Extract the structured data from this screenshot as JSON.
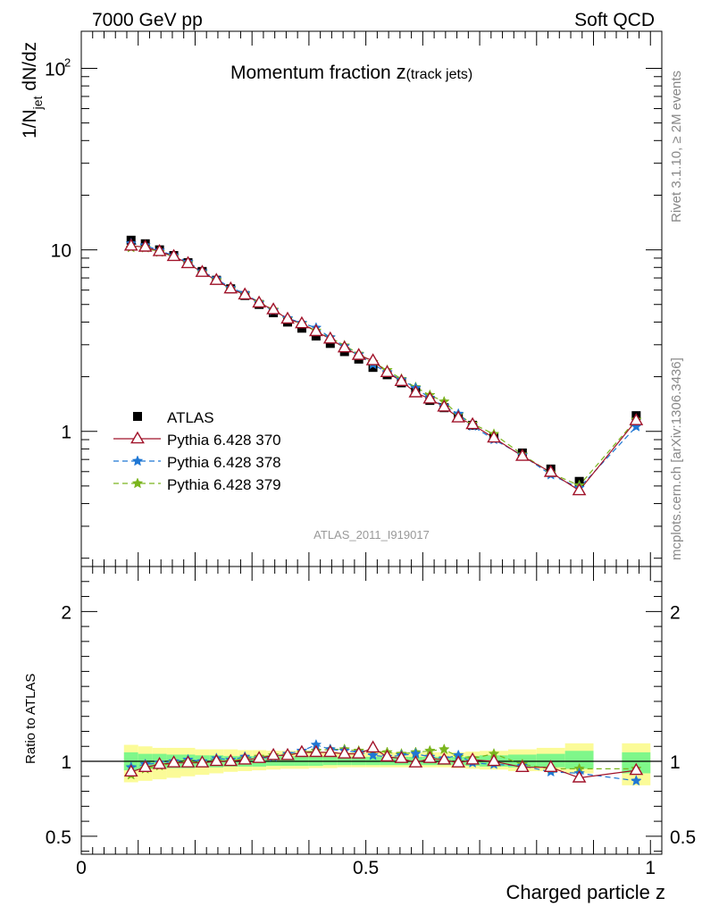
{
  "header": {
    "left": "7000 GeV pp",
    "right": "Soft QCD"
  },
  "side_labels": {
    "top": "Rivet 3.1.10, ≥ 2M events",
    "bottom": "mcplots.cern.ch [arXiv:1306.3436]"
  },
  "watermark": "ATLAS_2011_I919017",
  "chart_data": {
    "type": "line",
    "title_main": "Momentum fraction ",
    "title_z": "z",
    "title_sub": "(track jets)",
    "xlabel": "Charged particle z",
    "ylabel_main": "1/N",
    "ylabel_sub": "jet",
    "ylabel_rest": " dN/dz",
    "ratio_ylabel": "Ratio to ATLAS",
    "y_scale": "log",
    "xlim": [
      0,
      1.02
    ],
    "ylim": [
      0.18,
      160
    ],
    "ratio_ylim": [
      0.38,
      2.3
    ],
    "x_ticks": [
      {
        "v": 0,
        "label": "0"
      },
      {
        "v": 0.5,
        "label": "0.5"
      },
      {
        "v": 1,
        "label": "1"
      }
    ],
    "y_ticks": [
      {
        "v": 1,
        "label": "1"
      },
      {
        "v": 10,
        "label": "10"
      }
    ],
    "y_tick_top": {
      "v": 100,
      "base": "10",
      "exp": "2"
    },
    "ratio_ticks": [
      {
        "v": 0.5,
        "label": "0.5"
      },
      {
        "v": 1,
        "label": "1"
      },
      {
        "v": 2,
        "label": "2"
      }
    ],
    "x": [
      0.0875,
      0.1125,
      0.1375,
      0.1625,
      0.1875,
      0.2125,
      0.2375,
      0.2625,
      0.2875,
      0.3125,
      0.3375,
      0.3625,
      0.3875,
      0.4125,
      0.4375,
      0.4625,
      0.4875,
      0.5125,
      0.5375,
      0.5625,
      0.5875,
      0.6125,
      0.6375,
      0.6625,
      0.6875,
      0.725,
      0.775,
      0.825,
      0.875,
      0.975
    ],
    "bin_edges": [
      0.075,
      0.1,
      0.125,
      0.15,
      0.175,
      0.2,
      0.225,
      0.25,
      0.275,
      0.3,
      0.325,
      0.35,
      0.375,
      0.4,
      0.425,
      0.45,
      0.475,
      0.5,
      0.525,
      0.55,
      0.575,
      0.6,
      0.625,
      0.65,
      0.675,
      0.7,
      0.75,
      0.8,
      0.85,
      0.9,
      0.95,
      1.0
    ],
    "band_bins": [
      {
        "x0": 0.075,
        "x1": 0.1,
        "g": [
          0.94,
          1.06
        ],
        "y": [
          0.86,
          1.11
        ]
      },
      {
        "x0": 0.1,
        "x1": 0.125,
        "g": [
          0.95,
          1.05
        ],
        "y": [
          0.87,
          1.1
        ]
      },
      {
        "x0": 0.125,
        "x1": 0.15,
        "g": [
          0.95,
          1.05
        ],
        "y": [
          0.88,
          1.09
        ]
      },
      {
        "x0": 0.15,
        "x1": 0.175,
        "g": [
          0.955,
          1.045
        ],
        "y": [
          0.89,
          1.09
        ]
      },
      {
        "x0": 0.175,
        "x1": 0.2,
        "g": [
          0.955,
          1.045
        ],
        "y": [
          0.9,
          1.09
        ]
      },
      {
        "x0": 0.2,
        "x1": 0.225,
        "g": [
          0.96,
          1.04
        ],
        "y": [
          0.91,
          1.08
        ]
      },
      {
        "x0": 0.225,
        "x1": 0.25,
        "g": [
          0.96,
          1.04
        ],
        "y": [
          0.92,
          1.08
        ]
      },
      {
        "x0": 0.25,
        "x1": 0.275,
        "g": [
          0.965,
          1.035
        ],
        "y": [
          0.93,
          1.08
        ]
      },
      {
        "x0": 0.275,
        "x1": 0.3,
        "g": [
          0.965,
          1.035
        ],
        "y": [
          0.935,
          1.075
        ]
      },
      {
        "x0": 0.3,
        "x1": 0.325,
        "g": [
          0.965,
          1.035
        ],
        "y": [
          0.94,
          1.075
        ]
      },
      {
        "x0": 0.325,
        "x1": 0.35,
        "g": [
          0.97,
          1.035
        ],
        "y": [
          0.945,
          1.07
        ]
      },
      {
        "x0": 0.35,
        "x1": 0.375,
        "g": [
          0.97,
          1.035
        ],
        "y": [
          0.95,
          1.07
        ]
      },
      {
        "x0": 0.375,
        "x1": 0.4,
        "g": [
          0.97,
          1.035
        ],
        "y": [
          0.95,
          1.07
        ]
      },
      {
        "x0": 0.4,
        "x1": 0.425,
        "g": [
          0.97,
          1.035
        ],
        "y": [
          0.955,
          1.065
        ]
      },
      {
        "x0": 0.425,
        "x1": 0.45,
        "g": [
          0.975,
          1.035
        ],
        "y": [
          0.955,
          1.065
        ]
      },
      {
        "x0": 0.45,
        "x1": 0.475,
        "g": [
          0.975,
          1.03
        ],
        "y": [
          0.96,
          1.06
        ]
      },
      {
        "x0": 0.475,
        "x1": 0.5,
        "g": [
          0.975,
          1.03
        ],
        "y": [
          0.96,
          1.06
        ]
      },
      {
        "x0": 0.5,
        "x1": 0.525,
        "g": [
          0.975,
          1.03
        ],
        "y": [
          0.96,
          1.06
        ]
      },
      {
        "x0": 0.525,
        "x1": 0.55,
        "g": [
          0.975,
          1.03
        ],
        "y": [
          0.96,
          1.06
        ]
      },
      {
        "x0": 0.55,
        "x1": 0.575,
        "g": [
          0.975,
          1.03
        ],
        "y": [
          0.96,
          1.06
        ]
      },
      {
        "x0": 0.575,
        "x1": 0.6,
        "g": [
          0.975,
          1.03
        ],
        "y": [
          0.96,
          1.06
        ]
      },
      {
        "x0": 0.6,
        "x1": 0.625,
        "g": [
          0.975,
          1.03
        ],
        "y": [
          0.96,
          1.06
        ]
      },
      {
        "x0": 0.625,
        "x1": 0.65,
        "g": [
          0.975,
          1.03
        ],
        "y": [
          0.96,
          1.06
        ]
      },
      {
        "x0": 0.65,
        "x1": 0.675,
        "g": [
          0.975,
          1.03
        ],
        "y": [
          0.955,
          1.06
        ]
      },
      {
        "x0": 0.675,
        "x1": 0.7,
        "g": [
          0.97,
          1.035
        ],
        "y": [
          0.95,
          1.065
        ]
      },
      {
        "x0": 0.7,
        "x1": 0.75,
        "g": [
          0.965,
          1.04
        ],
        "y": [
          0.945,
          1.07
        ]
      },
      {
        "x0": 0.75,
        "x1": 0.8,
        "g": [
          0.96,
          1.045
        ],
        "y": [
          0.935,
          1.08
        ]
      },
      {
        "x0": 0.8,
        "x1": 0.85,
        "g": [
          0.96,
          1.05
        ],
        "y": [
          0.935,
          1.09
        ]
      },
      {
        "x0": 0.85,
        "x1": 0.9,
        "g": [
          0.95,
          1.07
        ],
        "y": [
          0.92,
          1.12
        ]
      },
      {
        "x0": 0.95,
        "x1": 1.0,
        "g": [
          0.92,
          1.06
        ],
        "y": [
          0.84,
          1.12
        ]
      }
    ],
    "data_series": {
      "name": "ATLAS",
      "color": "#000000",
      "values": [
        11.3,
        10.8,
        10.0,
        9.3,
        8.5,
        7.6,
        6.8,
        6.1,
        5.6,
        5.0,
        4.5,
        4.0,
        3.7,
        3.35,
        3.05,
        2.75,
        2.5,
        2.25,
        2.05,
        1.85,
        1.65,
        1.48,
        1.35,
        1.2,
        1.08,
        0.92,
        0.76,
        0.62,
        0.53,
        1.22
      ]
    },
    "series": [
      {
        "name": "Pythia 6.428 370",
        "color": "#a1132a",
        "marker": "open-triangle",
        "dash": "",
        "ratio": [
          0.93,
          0.96,
          0.98,
          0.99,
          0.99,
          0.99,
          1.0,
          1.0,
          1.01,
          1.02,
          1.04,
          1.04,
          1.06,
          1.06,
          1.06,
          1.05,
          1.05,
          1.09,
          1.03,
          1.02,
          0.99,
          1.02,
          1.01,
          0.99,
          1.01,
          1.0,
          0.96,
          0.96,
          0.89,
          0.94
        ]
      },
      {
        "name": "Pythia 6.428 378",
        "color": "#1f77d4",
        "marker": "star",
        "dash": "6,4",
        "ratio": [
          0.96,
          0.98,
          0.99,
          1.0,
          1.01,
          1.0,
          1.02,
          1.01,
          1.03,
          1.02,
          1.03,
          1.05,
          1.07,
          1.11,
          1.08,
          1.07,
          1.06,
          1.04,
          1.03,
          1.04,
          1.05,
          1.03,
          1.02,
          1.04,
          0.99,
          0.98,
          0.97,
          0.93,
          0.92,
          0.87
        ]
      },
      {
        "name": "Pythia 6.428 379",
        "color": "#7ab51d",
        "marker": "star",
        "dash": "6,4",
        "ratio": [
          0.91,
          0.95,
          0.97,
          0.99,
          1.0,
          0.99,
          1.0,
          1.0,
          1.02,
          1.03,
          1.04,
          1.04,
          1.06,
          1.07,
          1.08,
          1.08,
          1.07,
          1.07,
          1.06,
          1.05,
          1.06,
          1.07,
          1.08,
          1.03,
          1.02,
          1.05,
          0.98,
          0.95,
          0.95,
          0.95
        ]
      }
    ],
    "band_colors": {
      "inner": "#7ff78a",
      "outer": "#fbfb98"
    }
  }
}
